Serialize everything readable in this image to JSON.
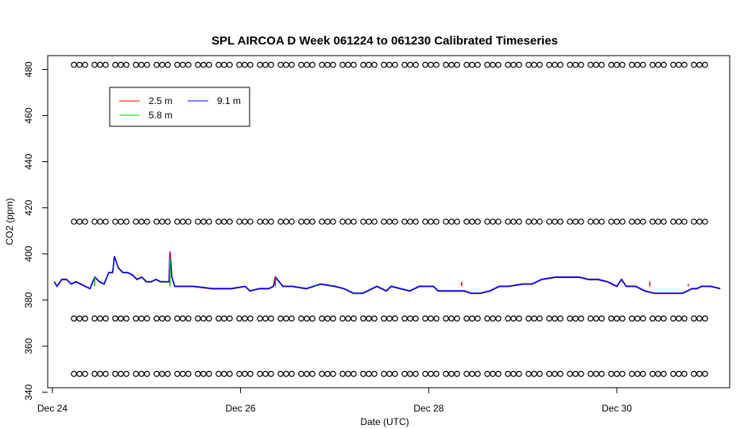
{
  "chart_data": {
    "type": "line",
    "title": "SPL AIRCOA D  Week 061224 to 061230  Calibrated Timeseries",
    "xlabel": "Date (UTC)",
    "ylabel": "CO2 (ppm)",
    "xlim": [
      -0.05,
      7.2
    ],
    "ylim": [
      342,
      486
    ],
    "x_ticks": [
      {
        "value": 0,
        "label": "Dec 24"
      },
      {
        "value": 2,
        "label": "Dec 26"
      },
      {
        "value": 4,
        "label": "Dec 28"
      },
      {
        "value": 6,
        "label": "Dec 30"
      }
    ],
    "y_ticks": [
      340,
      360,
      380,
      400,
      420,
      440,
      460,
      480
    ],
    "x_unit_note": "",
    "grid": false,
    "legend": {
      "placement": "top-left",
      "entries": [
        {
          "label": "2.5 m",
          "color": "#ff0000"
        },
        {
          "label": "5.8 m",
          "color": "#00cc00"
        },
        {
          "label": "9.1 m",
          "color": "#0000ff"
        }
      ]
    },
    "series": [
      {
        "name": "9.1 m",
        "color": "#0000ff",
        "points": [
          [
            0.02,
            388
          ],
          [
            0.05,
            386
          ],
          [
            0.1,
            389
          ],
          [
            0.15,
            389
          ],
          [
            0.2,
            387
          ],
          [
            0.25,
            388
          ],
          [
            0.3,
            387
          ],
          [
            0.35,
            386
          ],
          [
            0.4,
            385
          ],
          [
            0.45,
            390
          ],
          [
            0.5,
            388
          ],
          [
            0.55,
            387
          ],
          [
            0.6,
            392
          ],
          [
            0.64,
            392
          ],
          [
            0.66,
            399
          ],
          [
            0.7,
            394
          ],
          [
            0.75,
            392
          ],
          [
            0.8,
            392
          ],
          [
            0.85,
            391
          ],
          [
            0.9,
            389
          ],
          [
            0.95,
            390
          ],
          [
            1.0,
            388
          ],
          [
            1.05,
            388
          ],
          [
            1.1,
            389
          ],
          [
            1.15,
            388
          ],
          [
            1.2,
            388
          ],
          [
            1.24,
            388
          ],
          [
            1.25,
            401
          ],
          [
            1.27,
            390
          ],
          [
            1.3,
            386
          ],
          [
            1.5,
            386
          ],
          [
            1.7,
            385
          ],
          [
            1.9,
            385
          ],
          [
            2.05,
            386
          ],
          [
            2.1,
            384
          ],
          [
            2.2,
            385
          ],
          [
            2.3,
            385
          ],
          [
            2.35,
            386
          ],
          [
            2.37,
            390
          ],
          [
            2.45,
            386
          ],
          [
            2.55,
            386
          ],
          [
            2.7,
            385
          ],
          [
            2.85,
            387
          ],
          [
            3.0,
            386
          ],
          [
            3.1,
            385
          ],
          [
            3.2,
            383
          ],
          [
            3.3,
            383
          ],
          [
            3.4,
            385
          ],
          [
            3.45,
            386
          ],
          [
            3.55,
            384
          ],
          [
            3.6,
            386
          ],
          [
            3.7,
            385
          ],
          [
            3.8,
            384
          ],
          [
            3.9,
            386
          ],
          [
            4.0,
            386
          ],
          [
            4.05,
            386
          ],
          [
            4.1,
            384
          ],
          [
            4.2,
            384
          ],
          [
            4.35,
            384
          ],
          [
            4.38,
            384
          ],
          [
            4.45,
            383
          ],
          [
            4.55,
            383
          ],
          [
            4.65,
            384
          ],
          [
            4.75,
            386
          ],
          [
            4.85,
            386
          ],
          [
            5.0,
            387
          ],
          [
            5.1,
            387
          ],
          [
            5.2,
            389
          ],
          [
            5.35,
            390
          ],
          [
            5.5,
            390
          ],
          [
            5.6,
            390
          ],
          [
            5.7,
            389
          ],
          [
            5.8,
            389
          ],
          [
            5.9,
            388
          ],
          [
            5.95,
            387
          ],
          [
            6.0,
            386
          ],
          [
            6.05,
            389
          ],
          [
            6.1,
            386
          ],
          [
            6.2,
            386
          ],
          [
            6.3,
            384
          ],
          [
            6.4,
            383
          ],
          [
            6.5,
            383
          ],
          [
            6.6,
            383
          ],
          [
            6.7,
            383
          ],
          [
            6.8,
            385
          ],
          [
            6.85,
            385
          ],
          [
            6.9,
            386
          ],
          [
            7.0,
            386
          ],
          [
            7.1,
            385
          ]
        ]
      }
    ],
    "spikes": [
      {
        "series": "2.5 m",
        "x": 1.25,
        "y": 401
      },
      {
        "series": "5.8 m",
        "x": 1.25,
        "y": 398
      },
      {
        "series": "2.5 m",
        "x": 2.37,
        "y": 390
      },
      {
        "series": "2.5 m",
        "x": 4.35,
        "y": 388
      },
      {
        "series": "5.8 m",
        "x": 4.36,
        "y": 386
      },
      {
        "series": "2.5 m",
        "x": 6.35,
        "y": 388
      },
      {
        "series": "2.5 m",
        "x": 6.76,
        "y": 387
      },
      {
        "series": "5.8 m",
        "x": 2.8,
        "y": 387
      },
      {
        "series": "5.8 m",
        "x": 0.45,
        "y": 390
      }
    ],
    "reference_rows": [
      {
        "y": 482,
        "marker": "o"
      },
      {
        "y": 414,
        "marker": "o"
      },
      {
        "y": 372,
        "marker": "o"
      },
      {
        "y": 348,
        "marker": "o"
      }
    ]
  }
}
